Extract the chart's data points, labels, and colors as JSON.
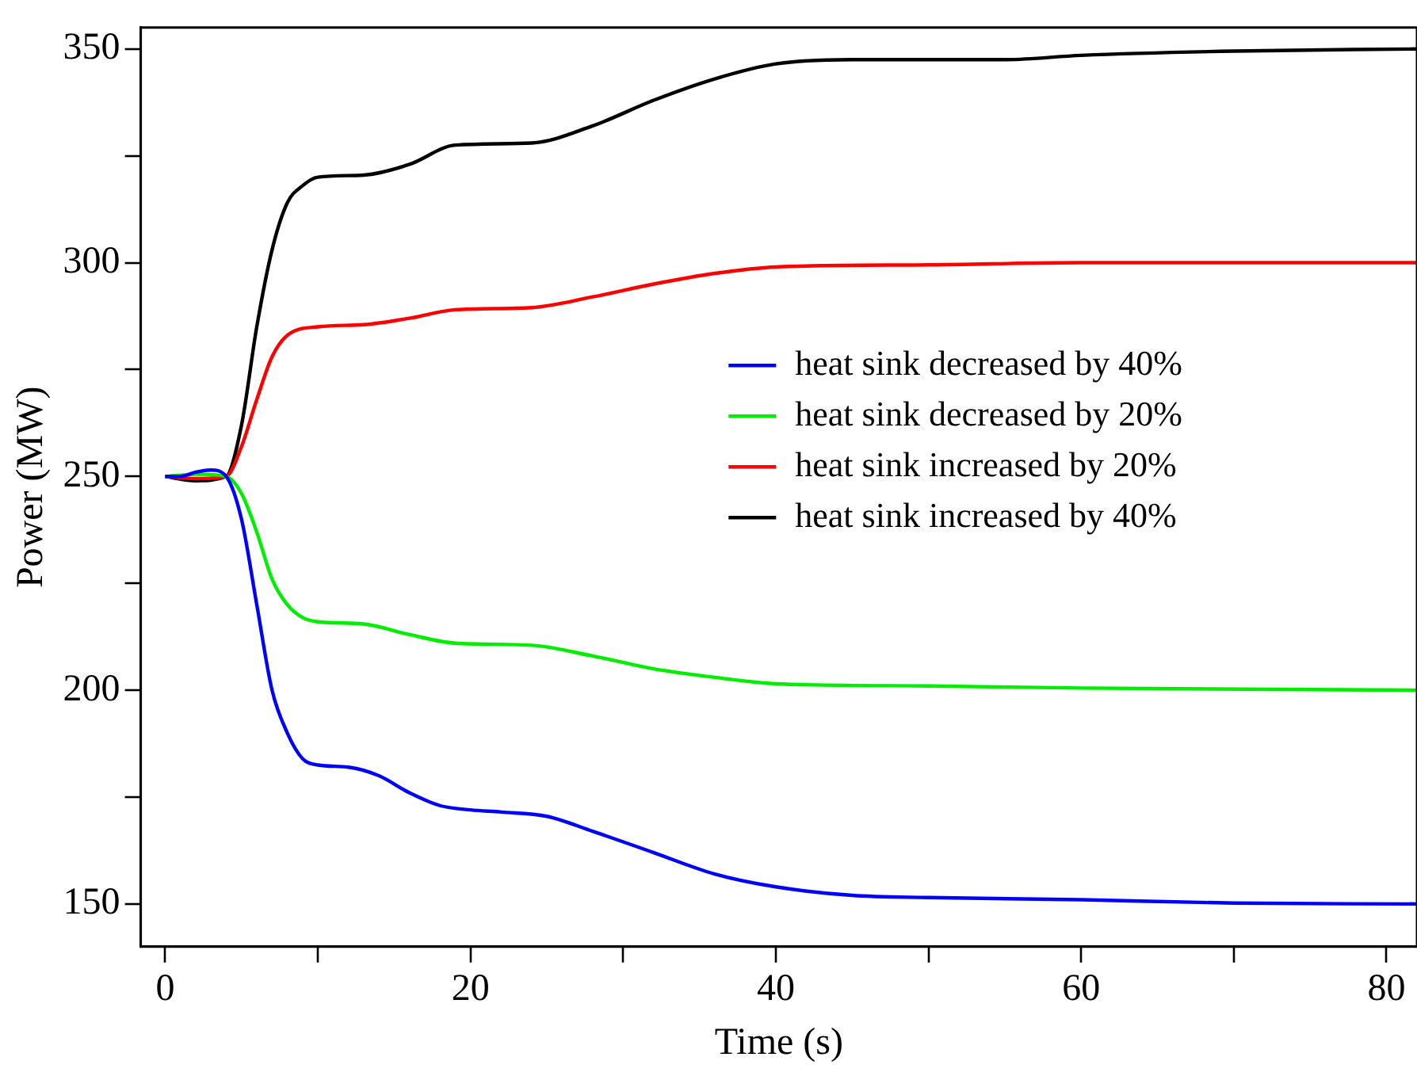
{
  "chart_data": {
    "type": "line",
    "xlabel": "Time (s)",
    "ylabel": "Power (MW)",
    "xlim": [
      -1.6,
      82
    ],
    "ylim": [
      140,
      355
    ],
    "xticks": [
      0,
      {
        "value": 10,
        "label": null
      },
      20,
      {
        "value": 30,
        "label": null
      },
      40,
      {
        "value": 50,
        "label": null
      },
      60,
      {
        "value": 70,
        "label": null
      },
      80
    ],
    "yticks": [
      150,
      {
        "value": 175,
        "label": null
      },
      200,
      {
        "value": 225,
        "label": null
      },
      250,
      {
        "value": 275,
        "label": null
      },
      300,
      {
        "value": 325,
        "label": null
      },
      350
    ],
    "grid": false,
    "legend": "right",
    "marker": "none",
    "line_style": "solid",
    "series": [
      {
        "name": "heat sink decreased by 40%",
        "color": "#0000ff",
        "x": [
          0,
          1,
          2,
          3,
          4,
          5,
          6,
          7,
          8,
          9,
          10,
          12,
          14,
          16,
          18,
          20,
          22,
          25,
          28,
          32,
          36,
          40,
          45,
          50,
          60,
          70,
          82
        ],
        "values": [
          250,
          250,
          251,
          251.5,
          250,
          240,
          220,
          200,
          190,
          184,
          182.5,
          182,
          180,
          176,
          173,
          172,
          171.5,
          170.5,
          167,
          162,
          157,
          154,
          152,
          151.5,
          151,
          150.2,
          150
        ]
      },
      {
        "name": "heat sink decreased by 20%",
        "color": "#00ee00",
        "x": [
          0,
          2,
          4,
          5,
          6,
          7,
          8,
          9,
          10,
          13,
          16,
          19,
          24,
          28,
          32,
          36,
          40,
          50,
          60,
          82
        ],
        "values": [
          250,
          250.5,
          250,
          246,
          237,
          226,
          220,
          217,
          216,
          215.5,
          213,
          211,
          210.5,
          208,
          205,
          203,
          201.5,
          201,
          200.5,
          200
        ]
      },
      {
        "name": "heat sink increased by 20%",
        "color": "#ff0000",
        "x": [
          0,
          2,
          4,
          5,
          6,
          7,
          8,
          10,
          13,
          16,
          19,
          24,
          28,
          32,
          36,
          40,
          50,
          60,
          82
        ],
        "values": [
          250,
          249.5,
          250,
          257,
          268,
          278,
          283,
          285,
          285.5,
          287,
          289,
          289.5,
          292,
          295,
          297.5,
          299,
          299.5,
          300,
          300
        ]
      },
      {
        "name": "heat sink increased by 40%",
        "color": "#000000",
        "x": [
          0,
          2,
          4,
          5,
          6,
          7,
          8,
          9,
          10,
          13,
          16,
          19,
          24,
          28,
          32,
          36,
          40,
          45,
          55,
          60,
          70,
          82
        ],
        "values": [
          250,
          249,
          250,
          262,
          285,
          303,
          314,
          318,
          320,
          320.5,
          323,
          327.5,
          328,
          332,
          338,
          343,
          346.5,
          347.5,
          347.5,
          348.5,
          349.5,
          350
        ]
      }
    ]
  }
}
